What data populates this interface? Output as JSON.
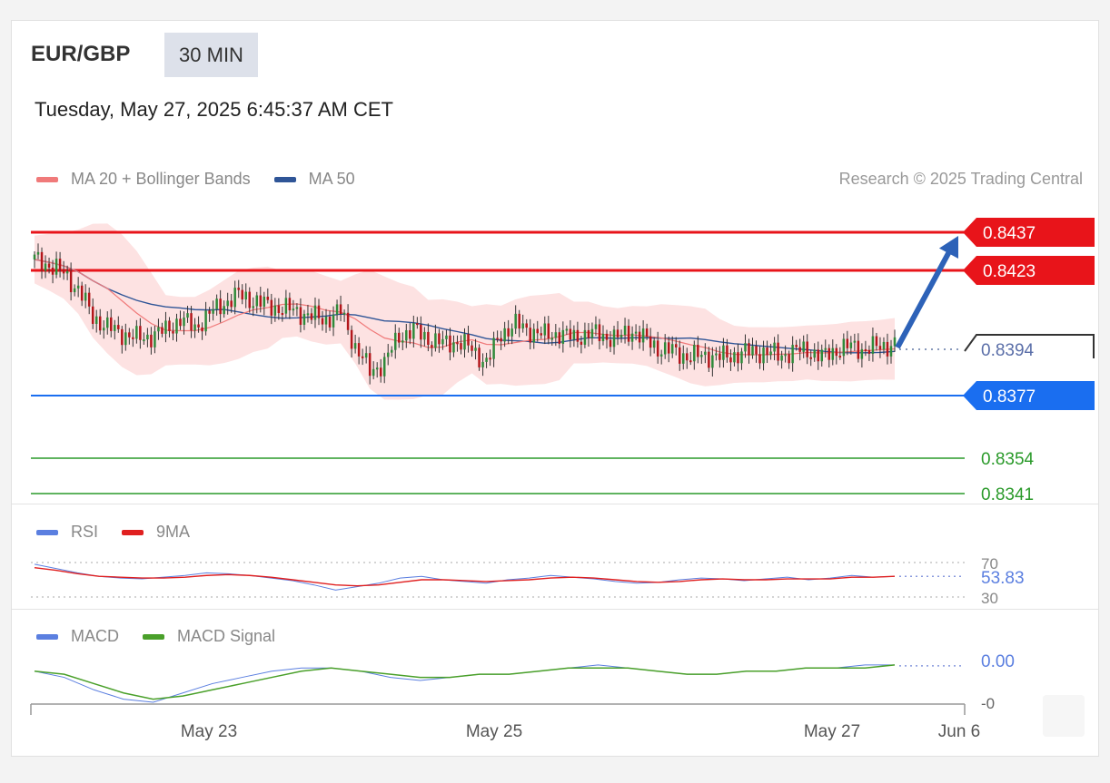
{
  "header": {
    "pair": "EUR/GBP",
    "timeframe": "30 MIN",
    "datetime": "Tuesday, May 27, 2025 6:45:37 AM CET"
  },
  "legend_main": [
    {
      "label": "MA 20 + Bollinger Bands",
      "color": "#f07a7a"
    },
    {
      "label": "MA 50",
      "color": "#2f5597"
    }
  ],
  "credit": "Research © 2025 Trading Central",
  "legend_rsi": [
    {
      "label": "RSI",
      "color": "#5b7fe0"
    },
    {
      "label": "9MA",
      "color": "#e02020"
    }
  ],
  "legend_macd": [
    {
      "label": "MACD",
      "color": "#5b7fe0"
    },
    {
      "label": "MACD Signal",
      "color": "#4aa02a"
    }
  ],
  "colors": {
    "resistance": "#e8141a",
    "pivot": "#1a6ef0",
    "support": "#2a9a2a",
    "current": "#333333",
    "candle_up": "#2f8a3a",
    "candle_down": "#b3161b",
    "band_fill": "#fde2e2",
    "ma20": "#f07a7a",
    "ma50": "#2f5597",
    "arrow": "#2d62b8"
  },
  "chart_data": [
    {
      "type": "candlestick",
      "title": "EUR/GBP 30 MIN",
      "x_tick_labels": [
        "May 23",
        "May 25",
        "May 27",
        "Jun 6"
      ],
      "ylim": [
        0.8336,
        0.8446
      ],
      "price_levels": [
        {
          "value": 0.8437,
          "label": "0.8437",
          "kind": "resistance"
        },
        {
          "value": 0.8423,
          "label": "0.8423",
          "kind": "resistance"
        },
        {
          "value": 0.8394,
          "label": "0.8394",
          "kind": "current"
        },
        {
          "value": 0.8377,
          "label": "0.8377",
          "kind": "pivot"
        },
        {
          "value": 0.8354,
          "label": "0.8354",
          "kind": "support"
        },
        {
          "value": 0.8341,
          "label": "0.8341",
          "kind": "support"
        }
      ],
      "forecast_arrow": {
        "from": 0.8394,
        "to": 0.8437
      },
      "close_path": [
        0.8427,
        0.8425,
        0.8422,
        0.8416,
        0.8406,
        0.8402,
        0.84,
        0.8398,
        0.8399,
        0.8401,
        0.8405,
        0.8402,
        0.8407,
        0.8411,
        0.8414,
        0.8412,
        0.841,
        0.8409,
        0.8408,
        0.8406,
        0.8405,
        0.8408,
        0.8395,
        0.8386,
        0.8389,
        0.8399,
        0.8401,
        0.8398,
        0.8396,
        0.8397,
        0.8394,
        0.8389,
        0.84,
        0.8403,
        0.8401,
        0.8399,
        0.84,
        0.8398,
        0.84,
        0.8399,
        0.8398,
        0.8401,
        0.8397,
        0.8394,
        0.8393,
        0.8391,
        0.8392,
        0.8391,
        0.8392,
        0.8393,
        0.8393,
        0.8392,
        0.8393,
        0.8394,
        0.8391,
        0.8394,
        0.8395,
        0.8394,
        0.8395,
        0.8396
      ]
    },
    {
      "type": "line",
      "title": "RSI",
      "ylim": [
        30,
        70
      ],
      "reference_levels": [
        70,
        30
      ],
      "last_value": "53.83",
      "series": [
        {
          "name": "RSI",
          "values": [
            68,
            63,
            58,
            54,
            52,
            51,
            53,
            55,
            58,
            57,
            55,
            52,
            49,
            44,
            38,
            42,
            46,
            52,
            54,
            50,
            48,
            46,
            50,
            52,
            55,
            53,
            51,
            48,
            46,
            47,
            50,
            52,
            51,
            49,
            51,
            53,
            50,
            52,
            55,
            53,
            54
          ]
        },
        {
          "name": "9MA",
          "values": [
            64,
            61,
            57,
            54,
            53,
            52,
            52,
            53,
            55,
            56,
            55,
            53,
            50,
            47,
            44,
            43,
            44,
            47,
            50,
            50,
            49,
            48,
            49,
            50,
            52,
            53,
            52,
            50,
            48,
            47,
            48,
            50,
            51,
            50,
            50,
            51,
            51,
            51,
            53,
            53,
            54
          ]
        }
      ]
    },
    {
      "type": "line",
      "title": "MACD",
      "ylim": [
        -0.0012,
        0.0002
      ],
      "tick_labels": [
        "0.00",
        "-0"
      ],
      "series": [
        {
          "name": "MACD",
          "values": [
            -0.0002,
            -0.0004,
            -0.0008,
            -0.0011,
            -0.0012,
            -0.0009,
            -0.0006,
            -0.0004,
            -0.0002,
            -0.0001,
            -0.0001,
            -0.0002,
            -0.0004,
            -0.0005,
            -0.0004,
            -0.0003,
            -0.0003,
            -0.0002,
            -0.0001,
            0.0,
            -0.0001,
            -0.0002,
            -0.0003,
            -0.0003,
            -0.0002,
            -0.0002,
            -0.0001,
            -0.0001,
            0.0,
            0.0
          ]
        },
        {
          "name": "MACD Signal",
          "values": [
            -0.0002,
            -0.0003,
            -0.0006,
            -0.0009,
            -0.0011,
            -0.001,
            -0.0008,
            -0.0006,
            -0.0004,
            -0.0002,
            -0.0001,
            -0.0002,
            -0.0003,
            -0.0004,
            -0.0004,
            -0.0003,
            -0.0003,
            -0.0002,
            -0.0001,
            -0.0001,
            -0.0001,
            -0.0002,
            -0.0003,
            -0.0003,
            -0.0002,
            -0.0002,
            -0.0001,
            -0.0001,
            -0.0001,
            0.0
          ]
        }
      ]
    }
  ]
}
